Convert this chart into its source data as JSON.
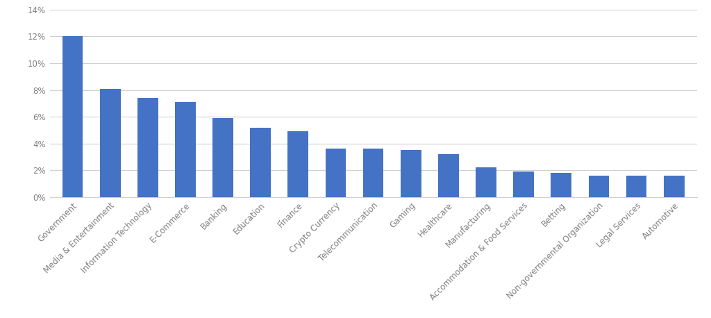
{
  "categories": [
    "Government",
    "Media & Entertainment",
    "Information Technology",
    "E-Commerce",
    "Banking",
    "Education",
    "Finance",
    "Crypto Currency",
    "Telecommunication",
    "Gaming",
    "Healthcare",
    "Manufacturing",
    "Accommodation & Food Services",
    "Betting",
    "Non-governmental Organization",
    "Legal Services",
    "Automotive"
  ],
  "values": [
    0.12,
    0.081,
    0.074,
    0.071,
    0.059,
    0.052,
    0.049,
    0.036,
    0.036,
    0.035,
    0.032,
    0.022,
    0.019,
    0.018,
    0.016,
    0.016,
    0.016
  ],
  "bar_color": "#4472C4",
  "ylim": [
    0,
    0.14
  ],
  "yticks": [
    0,
    0.02,
    0.04,
    0.06,
    0.08,
    0.1,
    0.12,
    0.14
  ],
  "ytick_labels": [
    "0%",
    "2%",
    "4%",
    "6%",
    "8%",
    "10%",
    "12%",
    "14%"
  ],
  "background_color": "#ffffff",
  "grid_color": "#d0d0d0",
  "tick_label_color": "#808080",
  "tick_label_fontsize": 8.5,
  "bar_width": 0.55
}
